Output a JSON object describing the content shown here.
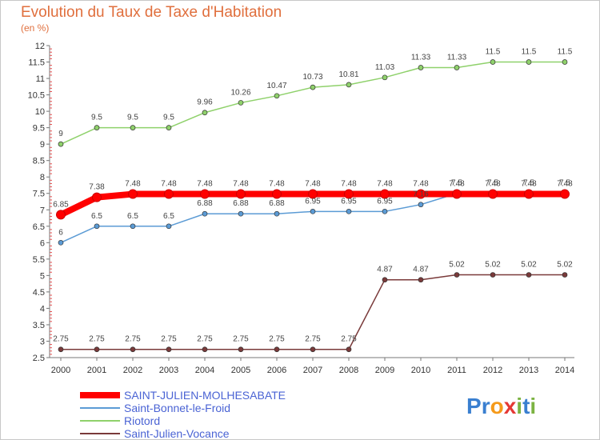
{
  "title": "Evolution du Taux de Taxe d'Habitation",
  "subtitle": "(en %)",
  "chart_data": {
    "type": "line",
    "title": "Evolution du Taux de Taxe d'Habitation",
    "ylabel": "(en %)",
    "ylim": [
      2.5,
      12
    ],
    "ytick_step": 0.5,
    "grid": false,
    "legend_position": "bottom-left",
    "x": [
      "2000",
      "2001",
      "2002",
      "2003",
      "2004",
      "2005",
      "2006",
      "2007",
      "2008",
      "2009",
      "2010",
      "2011",
      "2012",
      "2013",
      "2014"
    ],
    "series": [
      {
        "name": "SAINT-JULIEN-MOLHESABATE",
        "color": "#ff0000",
        "values": [
          6.85,
          7.38,
          7.48,
          7.48,
          7.48,
          7.48,
          7.48,
          7.48,
          7.48,
          7.48,
          7.48,
          7.48,
          7.48,
          7.48,
          7.48
        ],
        "labels": [
          "6.85",
          "7.38",
          "7.48",
          "7.48",
          "7.48",
          "7.48",
          "7.48",
          "7.48",
          "7.48",
          "7.48",
          "7.48",
          "7.48",
          "7.48",
          "7.48",
          "7.48"
        ]
      },
      {
        "name": "Saint-Bonnet-le-Froid",
        "color": "#5b9bd5",
        "values": [
          6,
          6.5,
          6.5,
          6.5,
          6.88,
          6.88,
          6.88,
          6.95,
          6.95,
          6.95,
          7.16,
          7.5,
          7.5,
          7.5,
          7.5
        ],
        "labels": [
          "6",
          "6.5",
          "6.5",
          "6.5",
          "6.88",
          "6.88",
          "6.88",
          "6.95",
          "6.95",
          "6.95",
          "7.16",
          "7.5",
          "7.5",
          "7.5",
          "7.5"
        ]
      },
      {
        "name": "Riotord",
        "color": "#8fd16b",
        "values": [
          9,
          9.5,
          9.5,
          9.5,
          9.96,
          10.26,
          10.47,
          10.73,
          10.81,
          11.03,
          11.33,
          11.33,
          11.5,
          11.5,
          11.5
        ],
        "labels": [
          "9",
          "9.5",
          "9.5",
          "9.5",
          "9.96",
          "10.26",
          "10.47",
          "10.73",
          "10.81",
          "11.03",
          "11.33",
          "11.33",
          "11.5",
          "11.5",
          "11.5"
        ]
      },
      {
        "name": "Saint-Julien-Vocance",
        "color": "#7a3a3a",
        "values": [
          2.75,
          2.75,
          2.75,
          2.75,
          2.75,
          2.75,
          2.75,
          2.75,
          2.75,
          4.87,
          4.87,
          5.02,
          5.02,
          5.02,
          5.02
        ],
        "labels": [
          "2.75",
          "2.75",
          "2.75",
          "2.75",
          "2.75",
          "2.75",
          "2.75",
          "2.75",
          "2.75",
          "4.87",
          "4.87",
          "5.02",
          "5.02",
          "5.02",
          "5.02"
        ]
      }
    ]
  },
  "logo": {
    "text": "Proxiti"
  }
}
